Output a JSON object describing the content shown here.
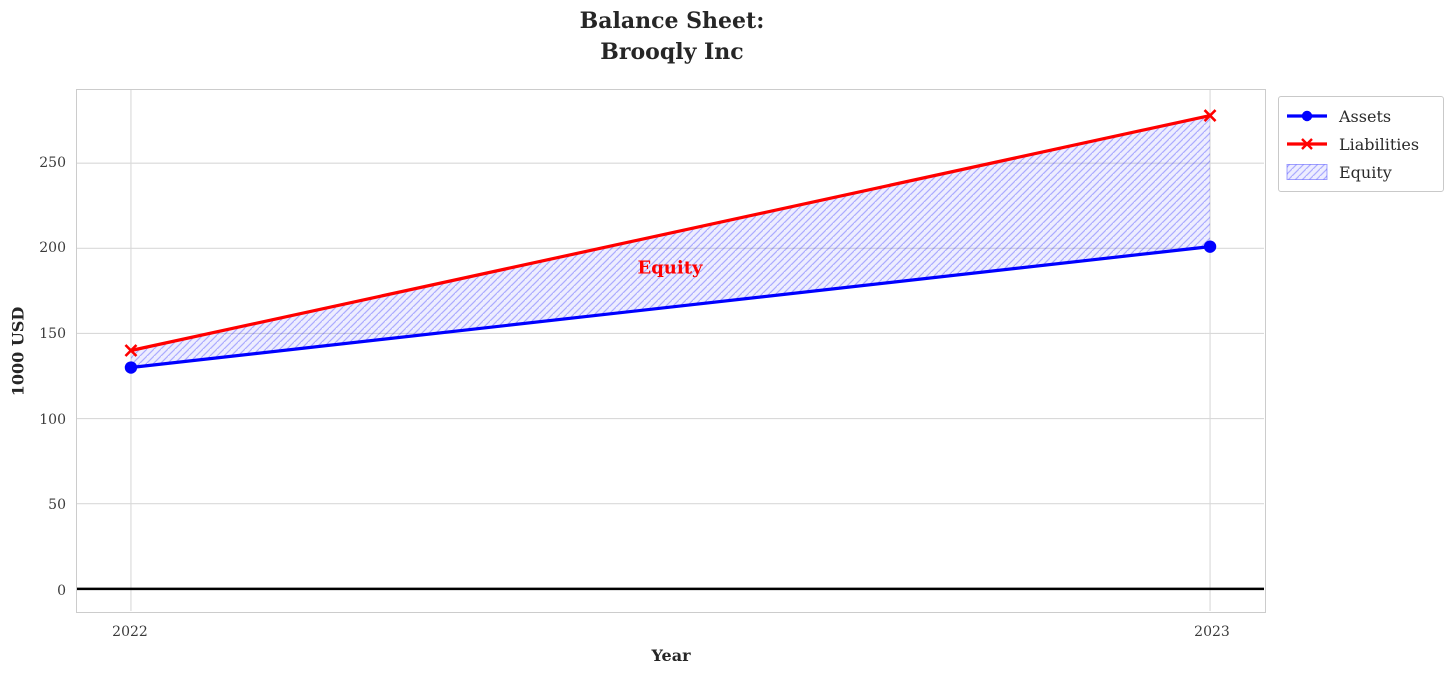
{
  "chart_data": {
    "type": "line",
    "title_lines": [
      "Balance Sheet:",
      "Brooqly Inc"
    ],
    "xlabel": "Year",
    "ylabel": "1000 USD",
    "x": [
      2022,
      2023
    ],
    "xtick_labels": [
      "2022",
      "2023"
    ],
    "yticks": [
      0,
      50,
      100,
      150,
      200,
      250
    ],
    "ytick_labels": [
      "0",
      "50",
      "100",
      "150",
      "200",
      "250"
    ],
    "xlim": [
      2021.95,
      2023.05
    ],
    "ylim": [
      -13,
      293
    ],
    "grid": {
      "show": true,
      "color": "#d9d9d9"
    },
    "series": [
      {
        "name": "Assets",
        "color": "#0000ff",
        "marker": "circle",
        "line_width": 3.2,
        "values": [
          130,
          201
        ]
      },
      {
        "name": "Liabilities",
        "color": "#ff0000",
        "marker": "x",
        "line_width": 3.2,
        "values": [
          140,
          278
        ]
      }
    ],
    "fill_between": {
      "label": "Equity",
      "lower_series": "Assets",
      "upper_series": "Liabilities",
      "fill_color": "rgba(0,0,255,0.07)",
      "hatch": "//",
      "hatch_color": "rgba(0,0,255,0.28)"
    },
    "annotation": {
      "text": "Equity",
      "color": "#ff0000",
      "x": 2022.5,
      "y": 188
    },
    "zero_line": {
      "y": 0,
      "color": "#000000",
      "width": 2.6
    },
    "legend": {
      "position": "outside-top-right",
      "entries": [
        "Assets",
        "Liabilities",
        "Equity"
      ]
    },
    "colors": {
      "spine": "#cccccc",
      "tick_label": "#3b3b3b",
      "title": "#262626",
      "background": "#ffffff"
    }
  }
}
